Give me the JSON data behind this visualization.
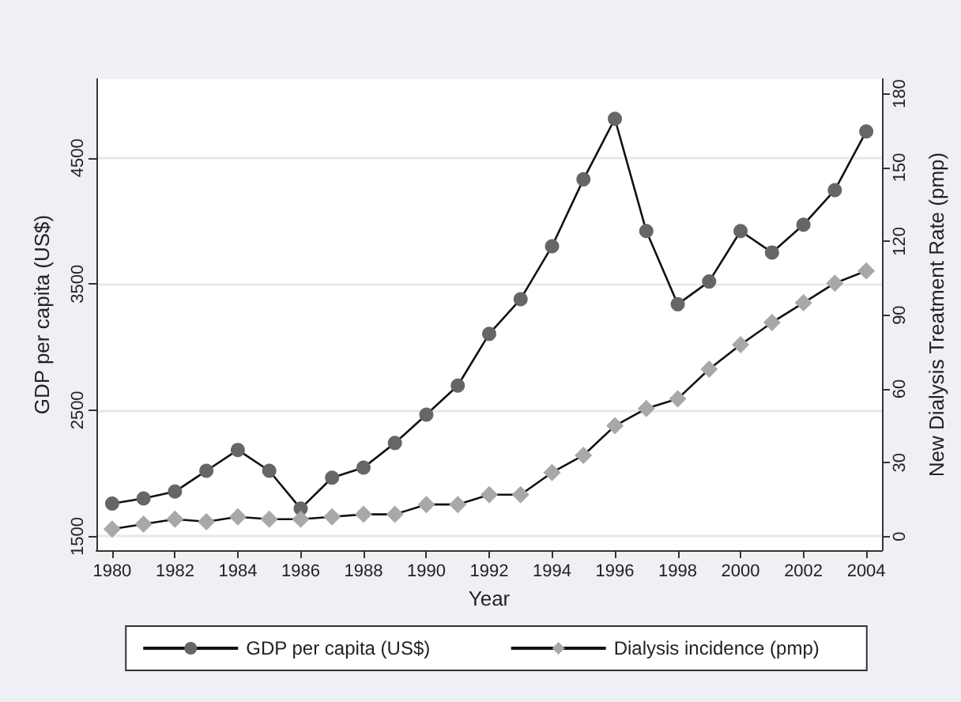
{
  "chart_data": {
    "type": "line",
    "xlabel": "Year",
    "ylabel": "GDP per capita (US$)",
    "y2label": "New Dialysis Treatment Rate (pmp)",
    "x": [
      1980,
      1981,
      1982,
      1983,
      1984,
      1985,
      1986,
      1987,
      1988,
      1989,
      1990,
      1991,
      1992,
      1993,
      1994,
      1995,
      1996,
      1997,
      1998,
      1999,
      2000,
      2001,
      2002,
      2003,
      2004
    ],
    "series": [
      {
        "name": "GDP per capita (US$)",
        "color": "#666666",
        "marker": "circle",
        "values": [
          1760,
          1800,
          1855,
          2020,
          2185,
          2020,
          1720,
          1965,
          2045,
          2240,
          2465,
          2695,
          3105,
          3380,
          3800,
          4330,
          4810,
          3920,
          3340,
          3520,
          3920,
          3750,
          3970,
          4245,
          4710
        ]
      },
      {
        "name": "Dialysis incidence (pmp)",
        "color": "#a8a8a8",
        "marker": "diamond",
        "axis": "y2",
        "values": [
          3,
          5,
          7,
          6,
          8,
          7,
          7,
          8,
          9,
          9,
          13,
          13,
          17,
          17,
          26,
          33,
          45,
          52,
          56,
          68,
          78,
          87,
          95,
          103,
          108
        ]
      }
    ],
    "xlim": [
      1979.5,
      2004.5
    ],
    "xticks": [
      1980,
      1982,
      1984,
      1986,
      1988,
      1990,
      1992,
      1994,
      1996,
      1998,
      2000,
      2002,
      2004
    ],
    "ylim": [
      1390,
      5125
    ],
    "yticks": [
      1500,
      2500,
      3500,
      4500
    ],
    "y2lim": [
      -5.6,
      186
    ],
    "y2ticks": [
      0,
      30,
      60,
      90,
      120,
      150,
      180
    ],
    "grid": "y",
    "legend": "bottom",
    "line_style": "solid"
  }
}
